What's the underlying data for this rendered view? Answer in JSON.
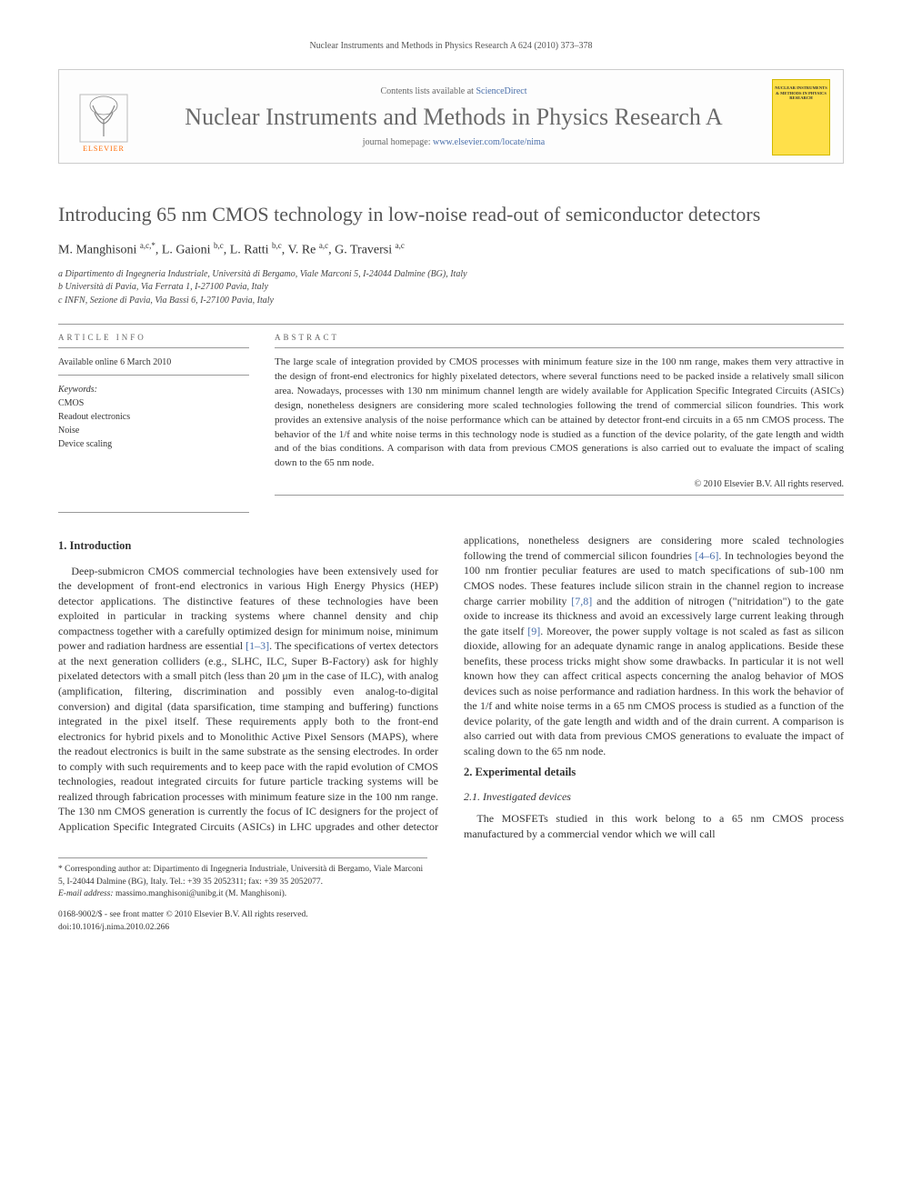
{
  "running_head": "Nuclear Instruments and Methods in Physics Research A 624 (2010) 373–378",
  "masthead": {
    "contents_prefix": "Contents lists available at ",
    "contents_link": "ScienceDirect",
    "journal_name": "Nuclear Instruments and Methods in Physics Research A",
    "homepage_prefix": "journal homepage: ",
    "homepage_link": "www.elsevier.com/locate/nima",
    "publisher_label": "ELSEVIER",
    "cover_text": "NUCLEAR INSTRUMENTS & METHODS IN PHYSICS RESEARCH",
    "logo_color": "#ff6a00",
    "cover_bg": "#ffe04a"
  },
  "title": "Introducing 65 nm CMOS technology in low-noise read-out of semiconductor detectors",
  "authors_html": "M. Manghisoni <sup>a,c,*</sup>, L. Gaioni <sup>b,c</sup>, L. Ratti <sup>b,c</sup>, V. Re <sup>a,c</sup>, G. Traversi <sup>a,c</sup>",
  "affiliations": [
    "a Dipartimento di Ingegneria Industriale, Università di Bergamo, Viale Marconi 5, I-24044 Dalmine (BG), Italy",
    "b Università di Pavia, Via Ferrata 1, I-27100 Pavia, Italy",
    "c INFN, Sezione di Pavia, Via Bassi 6, I-27100 Pavia, Italy"
  ],
  "article_info": {
    "label": "ARTICLE INFO",
    "available": "Available online 6 March 2010",
    "keywords_label": "Keywords:",
    "keywords": [
      "CMOS",
      "Readout electronics",
      "Noise",
      "Device scaling"
    ]
  },
  "abstract": {
    "label": "ABSTRACT",
    "text": "The large scale of integration provided by CMOS processes with minimum feature size in the 100 nm range, makes them very attractive in the design of front-end electronics for highly pixelated detectors, where several functions need to be packed inside a relatively small silicon area. Nowadays, processes with 130 nm minimum channel length are widely available for Application Specific Integrated Circuits (ASICs) design, nonetheless designers are considering more scaled technologies following the trend of commercial silicon foundries. This work provides an extensive analysis of the noise performance which can be attained by detector front-end circuits in a 65 nm CMOS process. The behavior of the 1/f and white noise terms in this technology node is studied as a function of the device polarity, of the gate length and width and of the bias conditions. A comparison with data from previous CMOS generations is also carried out to evaluate the impact of scaling down to the 65 nm node.",
    "copyright": "© 2010 Elsevier B.V. All rights reserved."
  },
  "sections": {
    "s1_title": "1. Introduction",
    "s1_p1a": "Deep-submicron CMOS commercial technologies have been extensively used for the development of front-end electronics in various High Energy Physics (HEP) detector applications. The distinctive features of these technologies have been exploited in particular in tracking systems where channel density and chip compactness together with a carefully optimized design for minimum noise, minimum power and radiation hardness are essential ",
    "s1_r1": "[1–3]",
    "s1_p1b": ". The specifications of vertex detectors at the next generation colliders (e.g., SLHC, ILC, Super B-Factory) ask for highly pixelated detectors with a small pitch (less than 20 μm in the case of ILC), with analog (amplification, filtering, discrimination and possibly even analog-to-digital conversion) and digital (data sparsification, time stamping and buffering) functions integrated in the pixel itself. These requirements apply both to the front-end electronics for hybrid pixels and to Monolithic Active Pixel Sensors (MAPS), where the readout electronics is built in the same substrate as the sensing electrodes. In order to comply with such requirements and to keep pace with the rapid evolution of CMOS technologies, readout integrated circuits for future particle tracking systems will be realized through fabrication processes with minimum feature size in the 100 nm range. The 130 nm CMOS generation is currently the focus of IC designers for the project of Application Specific Integrated Circuits (ASICs) in LHC upgrades and other detector applications, nonetheless designers are considering more scaled technologies following the trend of commercial silicon foundries ",
    "s1_r2": "[4–6]",
    "s1_p1c": ". In technologies beyond the 100 nm frontier peculiar features are used to match specifications of sub-100 nm CMOS nodes. These features include silicon strain in the channel region to increase charge carrier mobility ",
    "s1_r3": "[7,8]",
    "s1_p1d": " and the addition of nitrogen (\"nitridation\") to the gate oxide to increase its thickness and avoid an excessively large current leaking through the gate itself ",
    "s1_r4": "[9]",
    "s1_p1e": ". Moreover, the power supply voltage is not scaled as fast as silicon dioxide, allowing for an adequate dynamic range in analog applications. Beside these benefits, these process tricks might show some drawbacks. In particular it is not well known how they can affect critical aspects concerning the analog behavior of MOS devices such as noise performance and radiation hardness. In this work the behavior of the 1/f and white noise terms in a 65 nm CMOS process is studied as a function of the device polarity, of the gate length and width and of the drain current. A comparison is also carried out with data from previous CMOS generations to evaluate the impact of scaling down to the 65 nm node.",
    "s2_title": "2. Experimental details",
    "s21_title": "2.1. Investigated devices",
    "s21_p1": "The MOSFETs studied in this work belong to a 65 nm CMOS process manufactured by a commercial vendor which we will call"
  },
  "footnote": {
    "corr": "* Corresponding author at: Dipartimento di Ingegneria Industriale, Università di Bergamo, Viale Marconi 5, I-24044 Dalmine (BG), Italy. Tel.: +39 35 2052311; fax: +39 35 2052077.",
    "email_label": "E-mail address: ",
    "email": "massimo.manghisoni@unibg.it (M. Manghisoni)."
  },
  "doi": {
    "line1": "0168-9002/$ - see front matter © 2010 Elsevier B.V. All rights reserved.",
    "line2": "doi:10.1016/j.nima.2010.02.266"
  },
  "colors": {
    "link": "#4a6faa",
    "heading_grey": "#555555",
    "rule": "#999999"
  }
}
